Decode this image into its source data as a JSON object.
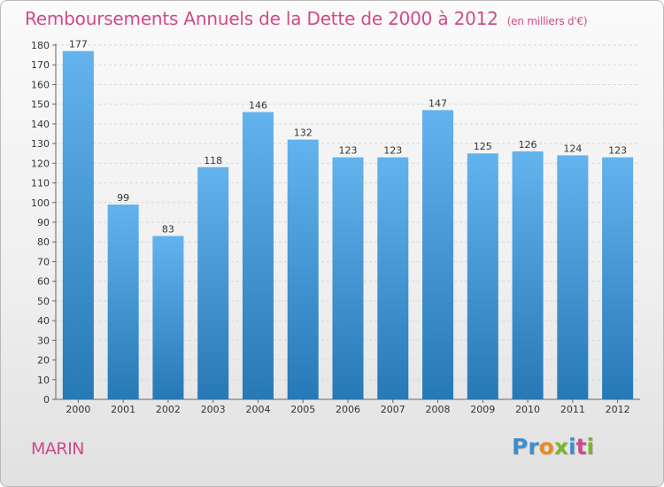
{
  "header": {
    "title": "Remboursements Annuels de la Dette de 2000 à 2012",
    "unit_note": "(en milliers d'€)"
  },
  "footer": {
    "town": "MARIN",
    "brand_letters": [
      {
        "ch": "P",
        "color": "#3b8fd0"
      },
      {
        "ch": "r",
        "color": "#3b8fd0"
      },
      {
        "ch": "o",
        "color": "#e98a1f"
      },
      {
        "ch": "x",
        "color": "#78b52e"
      },
      {
        "ch": "i",
        "color": "#3b8fd0"
      },
      {
        "ch": "t",
        "color": "#d04a87"
      },
      {
        "ch": "i",
        "color": "#78b52e"
      }
    ]
  },
  "colors": {
    "bar_top": "#62b3ee",
    "bar_bottom": "#2779b5",
    "title": "#d04a87"
  },
  "chart_data": {
    "type": "bar",
    "title": "Remboursements Annuels de la Dette de 2000 à 2012",
    "xlabel": "",
    "ylabel": "",
    "categories": [
      "2000",
      "2001",
      "2002",
      "2003",
      "2004",
      "2005",
      "2006",
      "2007",
      "2008",
      "2009",
      "2010",
      "2011",
      "2012"
    ],
    "values": [
      177,
      99,
      83,
      118,
      146,
      132,
      123,
      123,
      147,
      125,
      126,
      124,
      123
    ],
    "ylim": [
      0,
      180
    ],
    "yticks": [
      0,
      10,
      20,
      30,
      40,
      50,
      60,
      70,
      80,
      90,
      100,
      110,
      120,
      130,
      140,
      150,
      160,
      170,
      180
    ],
    "grid": true,
    "data_labels": true
  }
}
